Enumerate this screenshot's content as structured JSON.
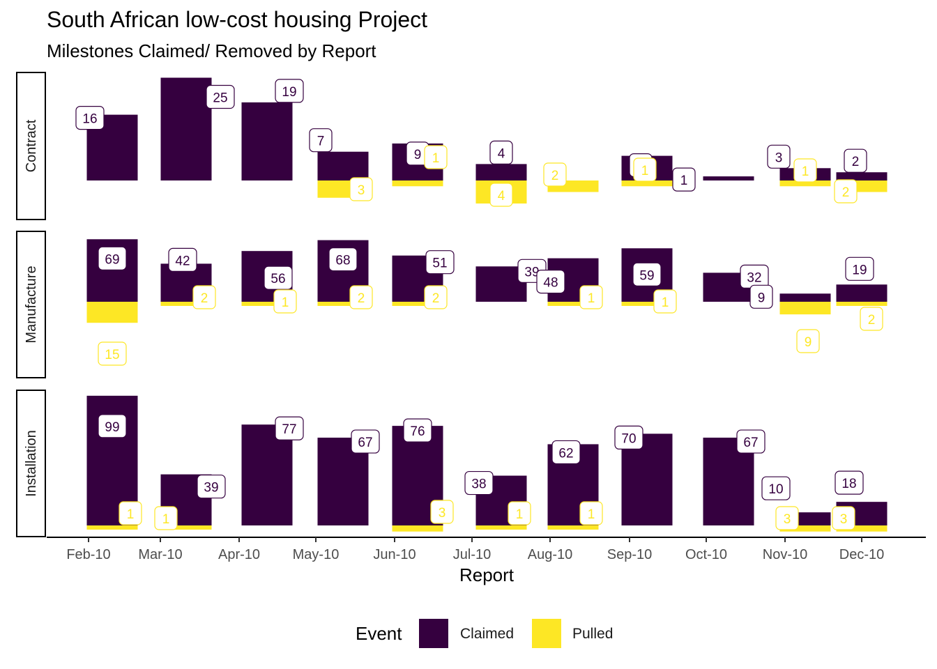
{
  "chart_data": {
    "type": "bar",
    "title": "South African low-cost housing Project",
    "subtitle": "Milestones Claimed/ Removed by Report",
    "xlabel": "Report",
    "categories": [
      "Feb-10",
      "Mar-10",
      "Apr-10",
      "May-10",
      "Jun-10",
      "Jul-10",
      "Aug-10",
      "Sep-10",
      "Oct-10",
      "Nov-10",
      "Dec-10"
    ],
    "legend": {
      "title": "Event",
      "position": "bottom",
      "items": [
        "Claimed",
        "Pulled"
      ]
    },
    "colors": {
      "Claimed": "#35003F",
      "Pulled": "#FDE725"
    },
    "grid": false,
    "panels": [
      {
        "name": "Contract",
        "series": [
          {
            "name": "Claimed",
            "values": [
              16,
              25,
              19,
              7,
              9,
              4,
              0,
              6,
              1,
              3,
              2
            ]
          },
          {
            "name": "Pulled",
            "values": [
              0,
              0,
              0,
              3,
              1,
              4,
              2,
              1,
              0,
              1,
              2
            ]
          }
        ]
      },
      {
        "name": "Manufacture",
        "series": [
          {
            "name": "Claimed",
            "values": [
              69,
              42,
              56,
              68,
              51,
              39,
              48,
              59,
              32,
              9,
              19
            ]
          },
          {
            "name": "Pulled",
            "values": [
              15,
              2,
              1,
              2,
              2,
              0,
              1,
              1,
              0,
              9,
              2
            ]
          }
        ]
      },
      {
        "name": "Installation",
        "series": [
          {
            "name": "Claimed",
            "values": [
              99,
              39,
              77,
              67,
              76,
              38,
              62,
              70,
              67,
              10,
              18
            ]
          },
          {
            "name": "Pulled",
            "values": [
              1,
              1,
              0,
              0,
              3,
              1,
              1,
              0,
              0,
              3,
              3
            ]
          }
        ]
      }
    ]
  }
}
